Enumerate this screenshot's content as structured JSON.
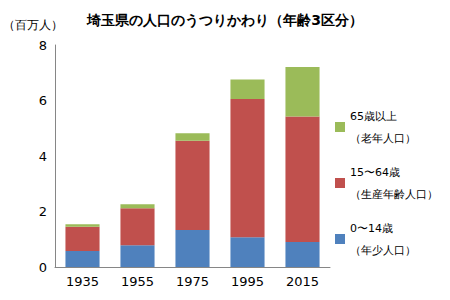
{
  "chart_data": {
    "type": "bar",
    "title": "埼玉県の人口のうつりかわり（年齢3区分）",
    "y_label": "（百万人）",
    "categories": [
      "1935",
      "1955",
      "1975",
      "1995",
      "2015"
    ],
    "series": [
      {
        "name": "0〜14歳\n（年少人口）",
        "color": "#4f81bd",
        "values": [
          0.58,
          0.78,
          1.33,
          1.07,
          0.9
        ]
      },
      {
        "name": "15〜64歳\n（生産年齢人口）",
        "color": "#c0504d",
        "values": [
          0.87,
          1.34,
          3.22,
          4.98,
          4.52
        ]
      },
      {
        "name": "65歳以上\n（老年人口）",
        "color": "#9bbb59",
        "values": [
          0.09,
          0.14,
          0.27,
          0.71,
          1.79
        ]
      }
    ],
    "stacked": true,
    "ylim": [
      0,
      8
    ],
    "yticks": [
      0,
      2,
      4,
      6,
      8
    ],
    "grid": false,
    "legend": "right"
  }
}
